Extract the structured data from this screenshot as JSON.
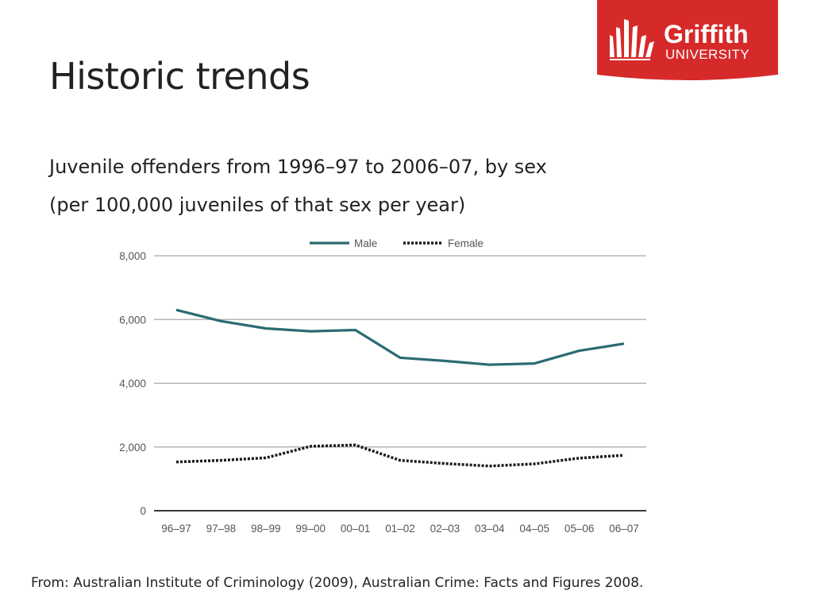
{
  "slide": {
    "title": "Historic trends",
    "subtitle_line1": "Juvenile offenders from 1996–97 to 2006–07, by sex",
    "subtitle_line2": "(per 100,000 juveniles of that sex per year)",
    "source": "From: Australian Institute of Criminology (2009),  Australian Crime: Facts and Figures 2008."
  },
  "logo": {
    "name": "Griffith",
    "subtext": "UNIVERSITY",
    "color": "#d62a2a"
  },
  "chart_data": {
    "type": "line",
    "title": "",
    "xlabel": "",
    "ylabel": "",
    "categories": [
      "96–97",
      "97–98",
      "98–99",
      "99–00",
      "00–01",
      "01–02",
      "02–03",
      "03–04",
      "04–05",
      "05–06",
      "06–07"
    ],
    "series": [
      {
        "name": "Male",
        "color": "#2b6b72",
        "style": "solid",
        "values": [
          6300,
          5950,
          5720,
          5630,
          5670,
          4800,
          4700,
          4580,
          4620,
          5020,
          5240
        ]
      },
      {
        "name": "Female",
        "color": "#1a1a1a",
        "style": "dotted",
        "values": [
          1530,
          1580,
          1660,
          2020,
          2060,
          1580,
          1480,
          1400,
          1470,
          1650,
          1740
        ]
      }
    ],
    "ylim": [
      0,
      8000
    ],
    "yticks": [
      0,
      2000,
      4000,
      6000,
      8000
    ],
    "ytick_labels": [
      "0",
      "2,000",
      "4,000",
      "6,000",
      "8,000"
    ],
    "grid": true,
    "legend_position": "top-center"
  }
}
